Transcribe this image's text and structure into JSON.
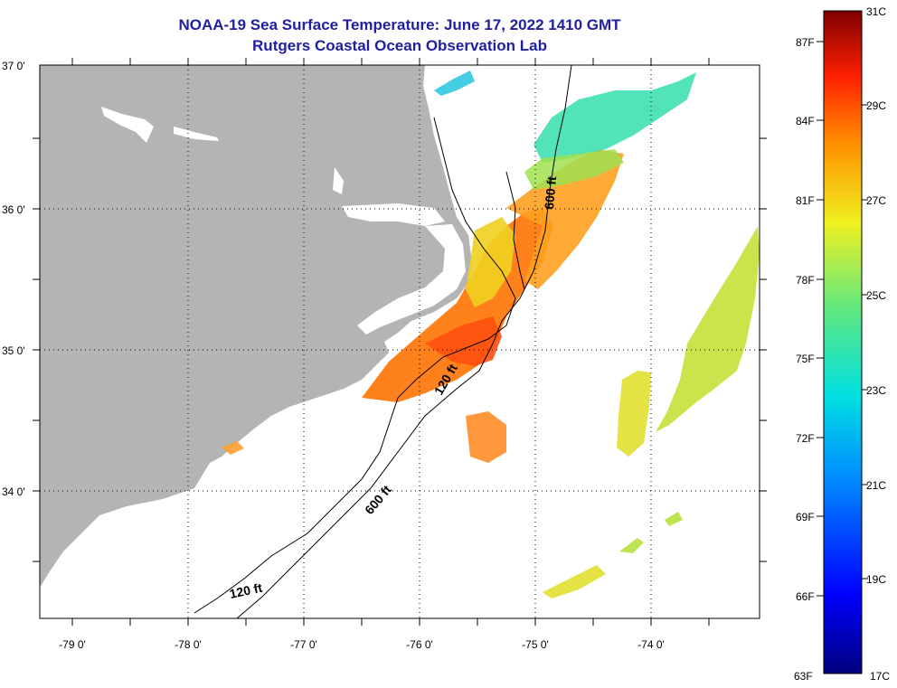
{
  "header": {
    "title": "NOAA-19 Sea Surface Temperature:  June 17, 2022 1410 GMT",
    "subtitle": "Rutgers Coastal Ocean Observation Lab"
  },
  "axes": {
    "lon_labels": [
      "-79 0'",
      "-78 0'",
      "-77 0'",
      "-76 0'",
      "-75 0'",
      "-74 0'"
    ],
    "lat_labels": [
      "37 0'",
      "36 0'",
      "35 0'",
      "34 0'"
    ]
  },
  "contours": {
    "label_600_north": "600 ft",
    "label_600_south": "600 ft",
    "label_120_mid": "120 ft",
    "label_120_south": "120 ft"
  },
  "colorbar": {
    "fahrenheit": [
      "87F",
      "84F",
      "81F",
      "78F",
      "75F",
      "72F",
      "69F",
      "66F",
      "63F"
    ],
    "celsius": [
      "31C",
      "29C",
      "27C",
      "25C",
      "23C",
      "21C",
      "19C",
      "17C"
    ]
  },
  "colors": {
    "land": "#b4b4b4",
    "title": "#1f1fa0",
    "warm": "#ff7a10",
    "yellow": "#e8e020",
    "cool": "#40e0b0"
  }
}
